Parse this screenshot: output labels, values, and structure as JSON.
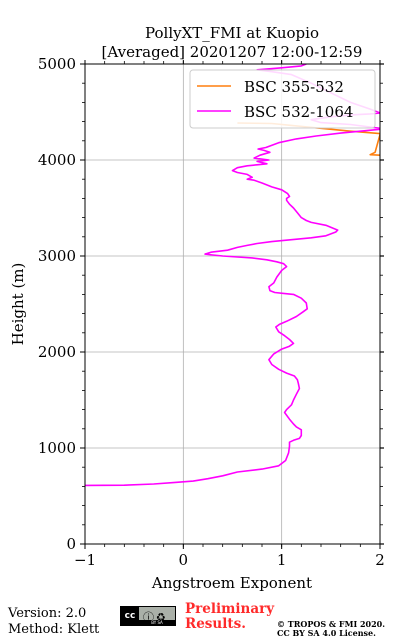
{
  "chart_data": {
    "type": "line",
    "title_line1": "PollyXT_FMI at Kuopio",
    "title_line2": "[Averaged] 20201207 12:00-12:59",
    "xlabel": "Angstroem Exponent",
    "ylabel": "Height (m)",
    "xlim": [
      -1,
      2
    ],
    "ylim": [
      0,
      5000
    ],
    "x_ticks": [
      -1,
      0,
      1,
      2
    ],
    "x_tick_labels": [
      "−1",
      "0",
      "1",
      "2"
    ],
    "y_ticks": [
      0,
      1000,
      2000,
      3000,
      4000,
      5000
    ],
    "y_tick_labels": [
      "0",
      "1000",
      "2000",
      "3000",
      "4000",
      "5000"
    ],
    "grid": true,
    "legend_position": "top-right",
    "series": [
      {
        "name": "BSC 355-532",
        "color": "#ff7f0e",
        "points": [
          [
            0.55,
            4385
          ],
          [
            0.9,
            4380
          ],
          [
            1.1,
            4360
          ],
          [
            1.4,
            4330
          ],
          [
            1.7,
            4300
          ],
          [
            2.0,
            4275
          ],
          [
            2.0,
            4265
          ],
          [
            1.95,
            4080
          ],
          [
            1.9,
            4055
          ],
          [
            2.0,
            4050
          ]
        ]
      },
      {
        "name": "BSC 532-1064",
        "color": "#ff00ff",
        "points": [
          [
            -1.0,
            610
          ],
          [
            -0.6,
            612
          ],
          [
            -0.3,
            625
          ],
          [
            -0.1,
            640
          ],
          [
            0.1,
            655
          ],
          [
            0.25,
            680
          ],
          [
            0.4,
            710
          ],
          [
            0.55,
            750
          ],
          [
            0.8,
            780
          ],
          [
            0.97,
            815
          ],
          [
            1.04,
            870
          ],
          [
            1.07,
            950
          ],
          [
            1.08,
            1020
          ],
          [
            1.08,
            1060
          ],
          [
            1.12,
            1080
          ],
          [
            1.18,
            1100
          ],
          [
            1.2,
            1130
          ],
          [
            1.2,
            1190
          ],
          [
            1.15,
            1220
          ],
          [
            1.12,
            1250
          ],
          [
            1.08,
            1300
          ],
          [
            1.03,
            1370
          ],
          [
            1.05,
            1400
          ],
          [
            1.1,
            1450
          ],
          [
            1.12,
            1500
          ],
          [
            1.15,
            1560
          ],
          [
            1.18,
            1620
          ],
          [
            1.17,
            1670
          ],
          [
            1.16,
            1710
          ],
          [
            1.13,
            1750
          ],
          [
            1.05,
            1780
          ],
          [
            0.97,
            1820
          ],
          [
            0.9,
            1870
          ],
          [
            0.87,
            1920
          ],
          [
            0.92,
            1980
          ],
          [
            1.0,
            2030
          ],
          [
            1.08,
            2060
          ],
          [
            1.12,
            2090
          ],
          [
            1.08,
            2130
          ],
          [
            1.03,
            2170
          ],
          [
            0.97,
            2210
          ],
          [
            0.94,
            2260
          ],
          [
            0.98,
            2290
          ],
          [
            1.05,
            2320
          ],
          [
            1.15,
            2370
          ],
          [
            1.22,
            2420
          ],
          [
            1.26,
            2450
          ],
          [
            1.25,
            2510
          ],
          [
            1.2,
            2560
          ],
          [
            1.12,
            2600
          ],
          [
            1.02,
            2610
          ],
          [
            0.93,
            2620
          ],
          [
            0.88,
            2640
          ],
          [
            0.87,
            2680
          ],
          [
            0.92,
            2720
          ],
          [
            0.95,
            2780
          ],
          [
            1.0,
            2850
          ],
          [
            1.05,
            2890
          ],
          [
            1.02,
            2920
          ],
          [
            0.95,
            2940
          ],
          [
            0.85,
            2960
          ],
          [
            0.7,
            2980
          ],
          [
            0.55,
            2990
          ],
          [
            0.4,
            3000
          ],
          [
            0.3,
            3010
          ],
          [
            0.22,
            3020
          ],
          [
            0.28,
            3040
          ],
          [
            0.45,
            3060
          ],
          [
            0.55,
            3090
          ],
          [
            0.65,
            3110
          ],
          [
            0.75,
            3130
          ],
          [
            0.9,
            3150
          ],
          [
            1.1,
            3170
          ],
          [
            1.3,
            3190
          ],
          [
            1.45,
            3210
          ],
          [
            1.55,
            3250
          ],
          [
            1.57,
            3270
          ],
          [
            1.45,
            3320
          ],
          [
            1.3,
            3350
          ],
          [
            1.25,
            3370
          ],
          [
            1.2,
            3400
          ],
          [
            1.16,
            3450
          ],
          [
            1.12,
            3500
          ],
          [
            1.08,
            3540
          ],
          [
            1.05,
            3580
          ],
          [
            1.05,
            3600
          ],
          [
            1.08,
            3620
          ],
          [
            1.06,
            3650
          ],
          [
            1.0,
            3690
          ],
          [
            0.9,
            3720
          ],
          [
            0.8,
            3760
          ],
          [
            0.72,
            3790
          ],
          [
            0.65,
            3800
          ],
          [
            0.7,
            3820
          ],
          [
            0.65,
            3850
          ],
          [
            0.55,
            3870
          ],
          [
            0.5,
            3890
          ],
          [
            0.55,
            3920
          ],
          [
            0.65,
            3940
          ],
          [
            0.75,
            3950
          ],
          [
            0.85,
            3960
          ],
          [
            0.75,
            3985
          ],
          [
            0.87,
            4000
          ],
          [
            0.72,
            4020
          ],
          [
            0.78,
            4050
          ],
          [
            0.88,
            4080
          ],
          [
            0.82,
            4100
          ],
          [
            0.76,
            4115
          ],
          [
            0.84,
            4130
          ],
          [
            0.97,
            4180
          ],
          [
            1.15,
            4220
          ],
          [
            1.35,
            4250
          ],
          [
            1.6,
            4280
          ],
          [
            1.8,
            4300
          ],
          [
            2.0,
            4320
          ],
          [
            2.0,
            4330
          ],
          [
            1.7,
            4370
          ],
          [
            1.4,
            4390
          ],
          [
            1.3,
            4420
          ],
          [
            1.5,
            4450
          ],
          [
            1.7,
            4470
          ],
          [
            1.9,
            4480
          ],
          [
            2.0,
            4490
          ],
          [
            1.9,
            4530
          ],
          [
            1.7,
            4600
          ],
          [
            1.5,
            4700
          ],
          [
            1.3,
            4800
          ],
          [
            1.1,
            4890
          ],
          [
            0.9,
            4920
          ],
          [
            0.75,
            4940
          ],
          [
            1.0,
            4960
          ],
          [
            1.2,
            4980
          ],
          [
            1.25,
            5000
          ]
        ]
      }
    ]
  },
  "footer": {
    "version": "Version: 2.0",
    "method": "Method: Klett",
    "cc_badge": "cc",
    "cc_bar": "BY SA",
    "preliminary_line1": "Preliminary",
    "preliminary_line2": "Results.",
    "copyright_line1": "© TROPOS & FMI 2020.",
    "copyright_line2": "CC BY SA 4.0 License."
  }
}
